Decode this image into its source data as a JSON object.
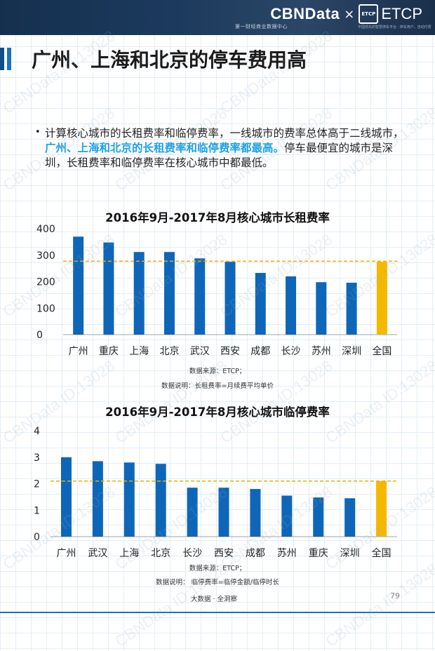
{
  "brand": {
    "name": "CBNData",
    "x": "×",
    "partner": "ETCP",
    "partner_logo": "ETCP",
    "subtitle": "第一财经商业数据中心",
    "subtitle2": "中国领先的智慧停车平台 · 停车用户，自动付费"
  },
  "page_title": "广州、上海和北京的停车费用高",
  "paragraph": {
    "part1": "计算核心城市的长租费率和临停费率，一线城市的费率总体高于二线城市，",
    "highlight": "广州、上海和北京的长租费率和临停费率都最高。",
    "part2": "停车最便宜的城市是深圳，长租费率和临停费率在核心城市中都最低。"
  },
  "chart_data": [
    {
      "type": "bar",
      "title": "2016年9月-2017年8月核心城市长租费率",
      "categories": [
        "广州",
        "重庆",
        "上海",
        "北京",
        "武汉",
        "西安",
        "成都",
        "长沙",
        "苏州",
        "深圳",
        "全国"
      ],
      "values": [
        370,
        348,
        312,
        312,
        288,
        275,
        233,
        220,
        198,
        196,
        275
      ],
      "highlight_index": 10,
      "reference_line": 277,
      "ylim": [
        0,
        400
      ],
      "yticks": [
        0,
        100,
        200,
        300,
        400
      ],
      "colors": {
        "bar": "#0e66b8",
        "highlight": "#f5b800",
        "reference": "#e8b100"
      },
      "notes": [
        "数据来源：ETCP；",
        "数据说明：长租费率=月续费平均单价"
      ]
    },
    {
      "type": "bar",
      "title": "2016年9月-2017年8月核心城市临停费率",
      "categories": [
        "广州",
        "武汉",
        "上海",
        "北京",
        "长沙",
        "西安",
        "成都",
        "苏州",
        "重庆",
        "深圳",
        "全国"
      ],
      "values": [
        3.0,
        2.85,
        2.8,
        2.75,
        1.85,
        1.85,
        1.8,
        1.55,
        1.48,
        1.45,
        2.1
      ],
      "highlight_index": 10,
      "reference_line": 2.1,
      "ylim": [
        0,
        4
      ],
      "yticks": [
        0,
        1,
        2,
        3,
        4
      ],
      "colors": {
        "bar": "#0e66b8",
        "highlight": "#f5b800",
        "reference": "#e8b100"
      },
      "notes": [
        "数据来源：ETCP；",
        "数据说明：  临停费率=临停金额/临停时长"
      ]
    }
  ],
  "footer": {
    "left": "大数据 · 全洞察",
    "page": "79"
  },
  "watermark": "CBNData ID:13028"
}
